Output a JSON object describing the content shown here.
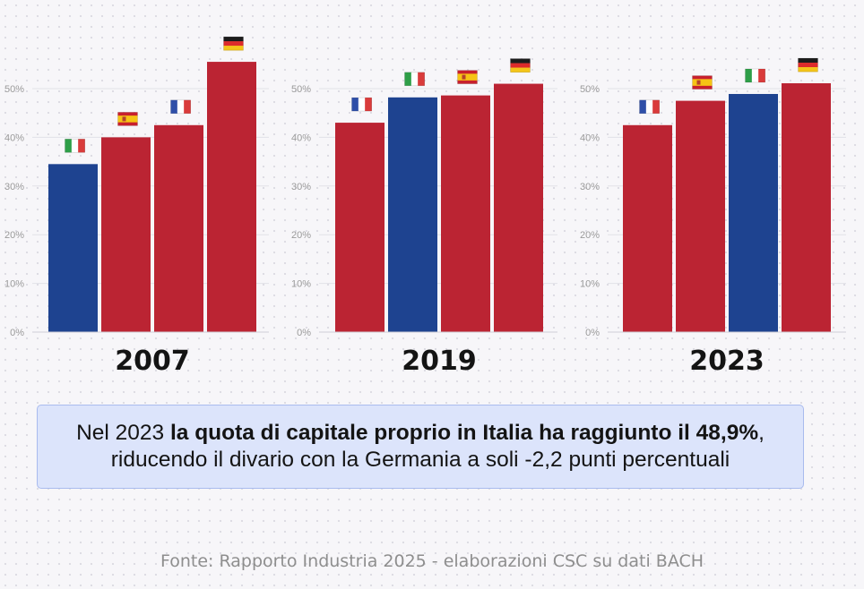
{
  "chart_data": [
    {
      "type": "bar",
      "title": "2007",
      "categories": [
        "Italia",
        "Spagna",
        "Francia",
        "Germania"
      ],
      "values": [
        34.5,
        40.0,
        42.5,
        55.5
      ],
      "ylim": [
        0,
        60
      ],
      "yticks": [
        "0%",
        "10%",
        "20%",
        "30%",
        "40%",
        "50%"
      ],
      "colors": [
        "#1e4390",
        "#bb2433",
        "#bb2433",
        "#bb2433"
      ],
      "flags": [
        "flag-it",
        "flag-es",
        "flag-fr",
        "flag-de"
      ]
    },
    {
      "type": "bar",
      "title": "2019",
      "categories": [
        "Francia",
        "Italia",
        "Spagna",
        "Germania"
      ],
      "values": [
        43.0,
        48.2,
        48.6,
        51.0
      ],
      "ylim": [
        0,
        60
      ],
      "yticks": [
        "0%",
        "10%",
        "20%",
        "30%",
        "40%",
        "50%"
      ],
      "colors": [
        "#bb2433",
        "#1e4390",
        "#bb2433",
        "#bb2433"
      ],
      "flags": [
        "flag-fr",
        "flag-it",
        "flag-es",
        "flag-de"
      ]
    },
    {
      "type": "bar",
      "title": "2023",
      "categories": [
        "Francia",
        "Spagna",
        "Italia",
        "Germania"
      ],
      "values": [
        42.5,
        47.5,
        48.9,
        51.1
      ],
      "ylim": [
        0,
        60
      ],
      "yticks": [
        "0%",
        "10%",
        "20%",
        "30%",
        "40%",
        "50%"
      ],
      "colors": [
        "#bb2433",
        "#bb2433",
        "#1e4390",
        "#bb2433"
      ],
      "flags": [
        "flag-fr",
        "flag-es",
        "flag-it",
        "flag-de"
      ]
    }
  ],
  "note": {
    "part1": "Nel 2023 ",
    "bold": "la quota di capitale proprio in Italia ha raggiunto il 48,9%",
    "part2": ",",
    "line2": "riducendo il divario con la Germania a soli -2,2 punti percentuali"
  },
  "source": "Fonte: Rapporto Industria 2025 - elaborazioni CSC su dati BACH"
}
